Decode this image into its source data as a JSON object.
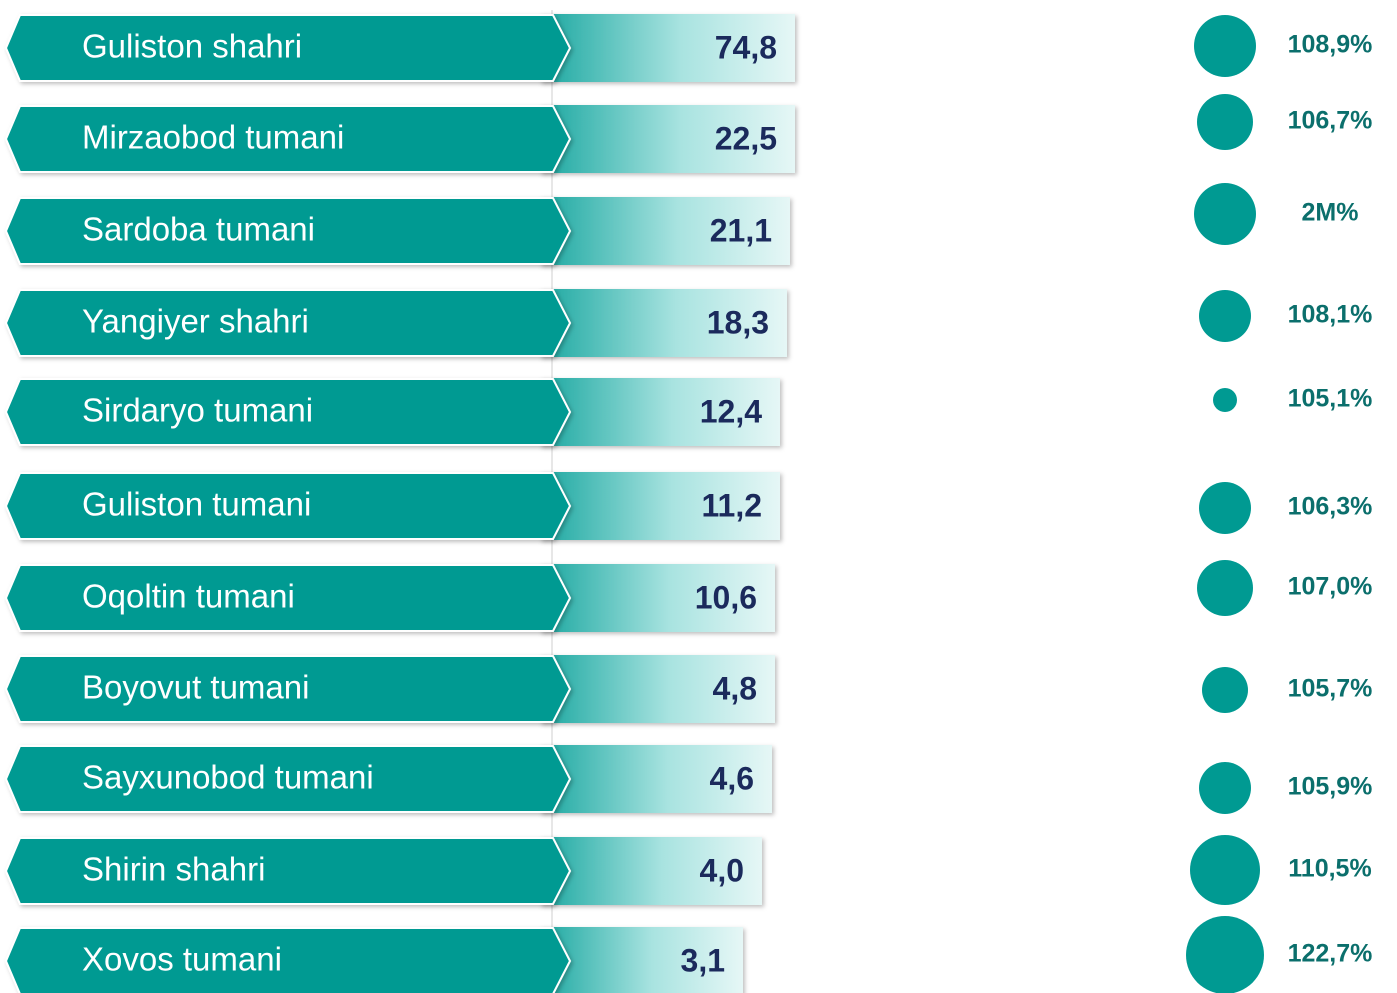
{
  "rows": [
    {
      "name": "Guliston shahri",
      "value": "74,8",
      "percent": "108,9%"
    },
    {
      "name": "Mirzaobod tumani",
      "value": "22,5",
      "percent": "106,7%"
    },
    {
      "name": "Sardoba tumani",
      "value": "21,1",
      "percent": "2M%"
    },
    {
      "name": "Yangiyer shahri",
      "value": "18,3",
      "percent": "108,1%"
    },
    {
      "name": "Sirdaryo tumani",
      "value": "12,4",
      "percent": "105,1%"
    },
    {
      "name": "Guliston tumani",
      "value": "11,2",
      "percent": "106,3%"
    },
    {
      "name": "Oqoltin tumani",
      "value": "10,6",
      "percent": "107,0%"
    },
    {
      "name": "Boyovut tumani",
      "value": "4,8",
      "percent": "105,7%"
    },
    {
      "name": "Sayxunobod tumani",
      "value": "4,6",
      "percent": "105,9%"
    },
    {
      "name": "Shirin shahri",
      "value": "4,0",
      "percent": "110,5%"
    },
    {
      "name": "Xovos tumani",
      "value": "3,1",
      "percent": "122,7%"
    }
  ]
}
